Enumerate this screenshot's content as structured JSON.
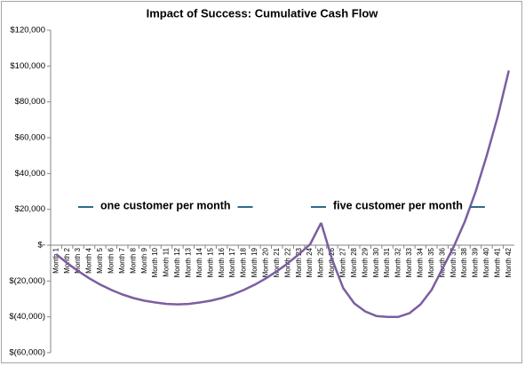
{
  "chart_data": {
    "type": "line",
    "title": "Impact of Success:  Cumulative Cash Flow",
    "categories": [
      "Month 1",
      "Month 2",
      "Month 3",
      "Month 4",
      "Month 5",
      "Month 6",
      "Month 7",
      "Month 8",
      "Month 9",
      "Month 10",
      "Month 11",
      "Month 12",
      "Month 13",
      "Month 14",
      "Month 15",
      "Month 16",
      "Month 17",
      "Month 18",
      "Month 19",
      "Month 20",
      "Month 21",
      "Month 22",
      "Month 23",
      "Month 24",
      "Month 25",
      "Month 26",
      "Month 27",
      "Month 28",
      "Month 29",
      "Month 30",
      "Month 31",
      "Month 32",
      "Month 33",
      "Month 34",
      "Month 35",
      "Month 36",
      "Month 37",
      "Month 38",
      "Month 39",
      "Month 40",
      "Month 41",
      "Month 42"
    ],
    "series": [
      {
        "name": "one customer per month",
        "color": "#7b5ea0",
        "values": [
          -5000,
          -10000,
          -14500,
          -18500,
          -22000,
          -25000,
          -27500,
          -29500,
          -31000,
          -32000,
          -32800,
          -33000,
          -32800,
          -32000,
          -31000,
          -29500,
          -27500,
          -25000,
          -22000,
          -18500,
          -14500,
          -10000,
          -5000,
          500,
          12500,
          null,
          null,
          null,
          null,
          null,
          null,
          null,
          null,
          null,
          null,
          null,
          null,
          null,
          null,
          null,
          null,
          null
        ]
      },
      {
        "name": "five customer per month",
        "color": "#7b5ea0",
        "values": [
          null,
          null,
          null,
          null,
          null,
          null,
          null,
          null,
          null,
          null,
          null,
          null,
          null,
          null,
          null,
          null,
          null,
          null,
          null,
          null,
          null,
          null,
          null,
          null,
          12500,
          -8000,
          -24000,
          -32500,
          -37000,
          -39500,
          -40000,
          -40000,
          -38000,
          -33000,
          -25000,
          -13000,
          -1000,
          13000,
          30000,
          50000,
          72000,
          97500
        ]
      }
    ],
    "legend_color": "#2f6a8e",
    "ylim": [
      -60000,
      120000
    ],
    "yticks": [
      {
        "value": -60000,
        "label": "$(60,000)"
      },
      {
        "value": -40000,
        "label": "$(40,000)"
      },
      {
        "value": -20000,
        "label": "$(20,000)"
      },
      {
        "value": 0,
        "label": "$-"
      },
      {
        "value": 20000,
        "label": "$20,000"
      },
      {
        "value": 40000,
        "label": "$40,000"
      },
      {
        "value": 60000,
        "label": "$60,000"
      },
      {
        "value": 80000,
        "label": "$80,000"
      },
      {
        "value": 100000,
        "label": "$100,000"
      },
      {
        "value": 120000,
        "label": "$120,000"
      }
    ],
    "grid": false
  }
}
